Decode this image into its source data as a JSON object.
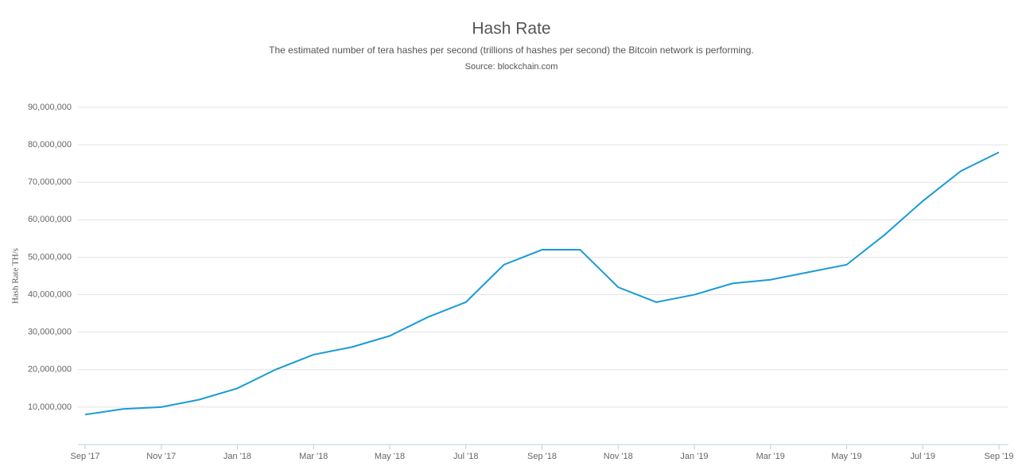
{
  "chart_data": {
    "type": "line",
    "title": "Hash Rate",
    "subtitle": "The estimated number of tera hashes per second (trillions of hashes per second) the Bitcoin network is performing.",
    "source": "Source: blockchain.com",
    "y_label": "Hash Rate TH/s",
    "x": [
      "2017-09",
      "2017-10",
      "2017-11",
      "2017-12",
      "2018-01",
      "2018-02",
      "2018-03",
      "2018-04",
      "2018-05",
      "2018-06",
      "2018-07",
      "2018-08",
      "2018-09",
      "2018-10",
      "2018-11",
      "2018-12",
      "2019-01",
      "2019-02",
      "2019-03",
      "2019-04",
      "2019-05",
      "2019-06",
      "2019-07",
      "2019-08",
      "2019-09"
    ],
    "series": [
      {
        "name": "Hash Rate",
        "color": "#1a9bd7",
        "values": [
          8000000,
          9500000,
          10000000,
          12000000,
          15000000,
          20000000,
          24000000,
          26000000,
          29000000,
          34000000,
          38000000,
          48000000,
          52000000,
          52000000,
          42000000,
          38000000,
          40000000,
          43000000,
          44000000,
          46000000,
          48000000,
          56000000,
          65000000,
          73000000,
          78000000
        ]
      }
    ],
    "xlim": [
      "2017-09",
      "2019-09"
    ],
    "xticks": [
      {
        "value": "2017-09",
        "label": "Sep '17"
      },
      {
        "value": "2017-11",
        "label": "Nov '17"
      },
      {
        "value": "2018-01",
        "label": "Jan '18"
      },
      {
        "value": "2018-03",
        "label": "Mar '18"
      },
      {
        "value": "2018-05",
        "label": "May '18"
      },
      {
        "value": "2018-07",
        "label": "Jul '18"
      },
      {
        "value": "2018-09",
        "label": "Sep '18"
      },
      {
        "value": "2018-11",
        "label": "Nov '18"
      },
      {
        "value": "2019-01",
        "label": "Jan '19"
      },
      {
        "value": "2019-03",
        "label": "Mar '19"
      },
      {
        "value": "2019-05",
        "label": "May '19"
      },
      {
        "value": "2019-07",
        "label": "Jul '19"
      },
      {
        "value": "2019-09",
        "label": "Sep '19"
      }
    ],
    "ylim": [
      0,
      90000000
    ],
    "yticks": [
      {
        "value": 10000000,
        "label": "10,000,000"
      },
      {
        "value": 20000000,
        "label": "20,000,000"
      },
      {
        "value": 30000000,
        "label": "30,000,000"
      },
      {
        "value": 40000000,
        "label": "40,000,000"
      },
      {
        "value": 50000000,
        "label": "50,000,000"
      },
      {
        "value": 60000000,
        "label": "60,000,000"
      },
      {
        "value": 70000000,
        "label": "70,000,000"
      },
      {
        "value": 80000000,
        "label": "80,000,000"
      },
      {
        "value": 90000000,
        "label": "90,000,000"
      }
    ],
    "grid": true
  }
}
